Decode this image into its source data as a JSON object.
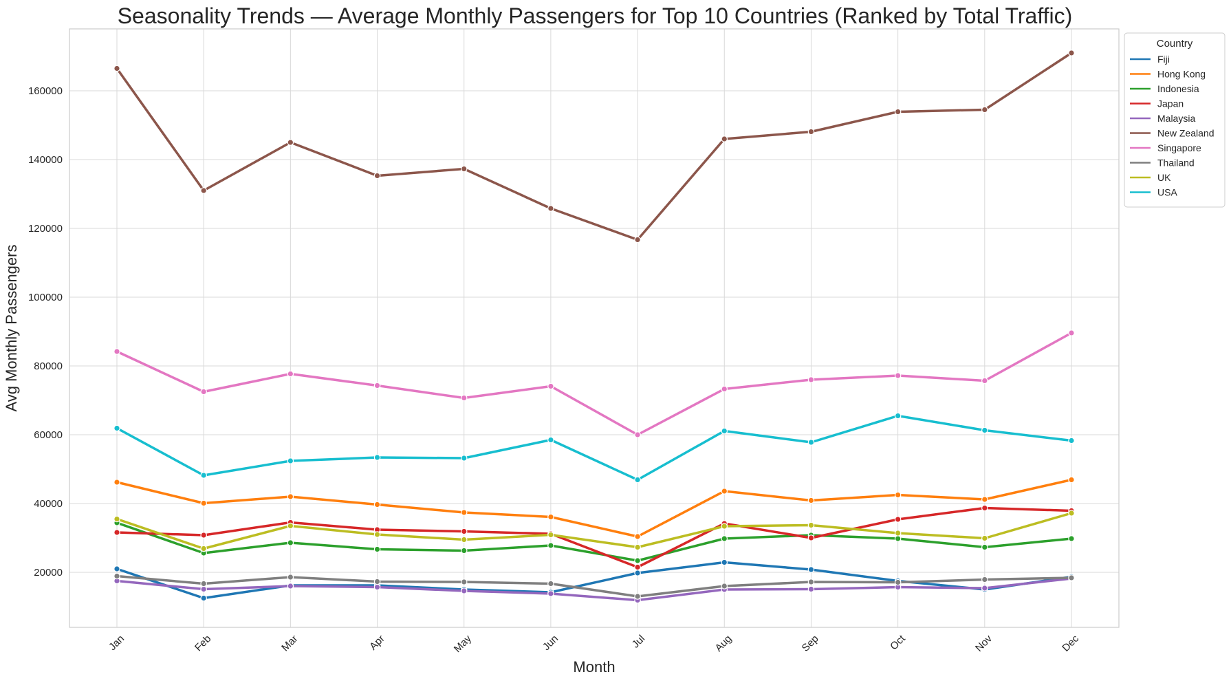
{
  "chart_data": {
    "type": "line",
    "title": "Seasonality Trends — Average Monthly Passengers for Top 10 Countries (Ranked by Total Traffic)",
    "xlabel": "Month",
    "ylabel": "Avg Monthly Passengers",
    "categories": [
      "Jan",
      "Feb",
      "Mar",
      "Apr",
      "May",
      "Jun",
      "Jul",
      "Aug",
      "Sep",
      "Oct",
      "Nov",
      "Dec"
    ],
    "ylim": [
      4000,
      178000
    ],
    "yticks": [
      20000,
      40000,
      60000,
      80000,
      100000,
      120000,
      140000,
      160000
    ],
    "ytick_labels": [
      "20000",
      "40000",
      "60000",
      "80000",
      "100000",
      "120000",
      "140000",
      "160000"
    ],
    "grid": true,
    "legend": {
      "title": "Country",
      "placement": "outside top-right"
    },
    "series": [
      {
        "name": "Fiji",
        "color": "#1f77b4",
        "values": [
          21000,
          12500,
          16200,
          16200,
          15000,
          14200,
          19800,
          22900,
          20800,
          17500,
          15000,
          18700
        ]
      },
      {
        "name": "Hong Kong",
        "color": "#ff7f0e",
        "values": [
          46200,
          40100,
          42000,
          39700,
          37400,
          36100,
          30400,
          43600,
          40900,
          42500,
          41200,
          46900
        ]
      },
      {
        "name": "Indonesia",
        "color": "#2ca02c",
        "values": [
          34400,
          25600,
          28600,
          26700,
          26300,
          27800,
          23400,
          29800,
          30800,
          29800,
          27300,
          29800
        ]
      },
      {
        "name": "Japan",
        "color": "#d62728",
        "values": [
          31600,
          30800,
          34500,
          32400,
          31900,
          31200,
          21500,
          34200,
          30000,
          35400,
          38700,
          37900
        ]
      },
      {
        "name": "Malaysia",
        "color": "#9467bd",
        "values": [
          17500,
          15100,
          16000,
          15700,
          14600,
          13800,
          11900,
          15000,
          15100,
          15700,
          15400,
          18200
        ]
      },
      {
        "name": "New Zealand",
        "color": "#8c564b",
        "values": [
          166500,
          131000,
          145000,
          135300,
          137300,
          125800,
          116700,
          146000,
          148100,
          153900,
          154500,
          171000
        ]
      },
      {
        "name": "Singapore",
        "color": "#e377c2",
        "values": [
          84200,
          72500,
          77700,
          74300,
          70700,
          74100,
          60000,
          73300,
          76000,
          77200,
          75700,
          89600
        ]
      },
      {
        "name": "Thailand",
        "color": "#7f7f7f",
        "values": [
          18900,
          16700,
          18600,
          17300,
          17200,
          16700,
          13000,
          16000,
          17200,
          17100,
          17900,
          18400
        ]
      },
      {
        "name": "UK",
        "color": "#bcbd22",
        "values": [
          35500,
          26900,
          33500,
          31000,
          29500,
          30900,
          27300,
          33400,
          33700,
          31400,
          29900,
          37200
        ]
      },
      {
        "name": "USA",
        "color": "#17becf",
        "values": [
          61900,
          48200,
          52400,
          53400,
          53200,
          58500,
          46900,
          61100,
          57800,
          65500,
          61300,
          58300
        ]
      }
    ]
  }
}
